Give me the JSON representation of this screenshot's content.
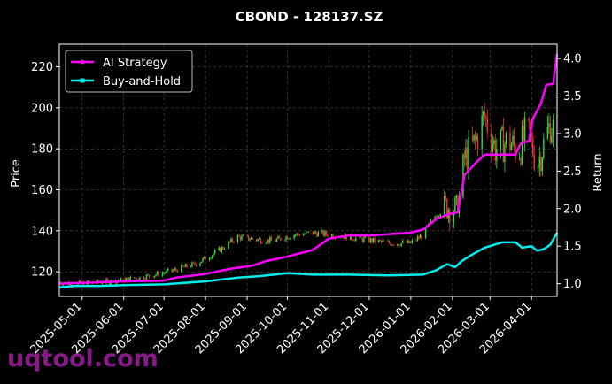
{
  "chart_data": {
    "type": "candlestick+line",
    "title": "CBOND - 128137.SZ",
    "ylabel_left": "Price",
    "ylabel_right": "Return",
    "ylim_left": [
      108,
      231
    ],
    "ylim_right": [
      0.83,
      4.19
    ],
    "yticks_left": [
      120,
      140,
      160,
      180,
      200,
      220
    ],
    "yticks_right": [
      1.0,
      1.5,
      2.0,
      2.5,
      3.0,
      3.5,
      4.0
    ],
    "ytick_labels_right": [
      "1.0",
      "1.5",
      "2.0",
      "2.5",
      "3.0",
      "3.5",
      "4.0"
    ],
    "xlim": [
      "2025-04-14",
      "2026-04-20"
    ],
    "xticks": [
      "2025-05-01",
      "2025-06-01",
      "2025-07-01",
      "2025-08-01",
      "2025-09-01",
      "2025-10-01",
      "2025-11-01",
      "2025-12-01",
      "2026-01-01",
      "2026-02-01",
      "2026-03-01",
      "2026-04-01"
    ],
    "grid": true,
    "legend_position": "upper-left",
    "colors": {
      "up": "#33dd33",
      "down": "#ee3333",
      "ai": "#ff00ff",
      "bh": "#00eeee",
      "grid": "#555555",
      "text": "#ffffff"
    },
    "price_keyframes": [
      [
        "2025-04-14",
        115
      ],
      [
        "2025-04-25",
        114
      ],
      [
        "2025-05-15",
        115
      ],
      [
        "2025-06-01",
        116
      ],
      [
        "2025-06-20",
        118
      ],
      [
        "2025-07-10",
        121
      ],
      [
        "2025-07-25",
        124
      ],
      [
        "2025-08-10",
        130
      ],
      [
        "2025-08-25",
        137
      ],
      [
        "2025-09-05",
        136
      ],
      [
        "2025-09-20",
        135
      ],
      [
        "2025-10-05",
        138
      ],
      [
        "2025-10-20",
        139
      ],
      [
        "2025-11-05",
        138
      ],
      [
        "2025-11-25",
        136
      ],
      [
        "2025-12-15",
        134
      ],
      [
        "2026-01-01",
        134
      ],
      [
        "2026-01-10",
        138
      ],
      [
        "2026-01-20",
        148
      ],
      [
        "2026-01-28",
        152
      ],
      [
        "2026-02-05",
        150
      ],
      [
        "2026-02-10",
        175
      ],
      [
        "2026-02-18",
        183
      ],
      [
        "2026-02-25",
        196
      ],
      [
        "2026-03-05",
        180
      ],
      [
        "2026-03-15",
        184
      ],
      [
        "2026-03-22",
        178
      ],
      [
        "2026-03-27",
        186
      ],
      [
        "2026-03-31",
        185
      ],
      [
        "2026-04-05",
        172
      ],
      [
        "2026-04-10",
        182
      ],
      [
        "2026-04-15",
        192
      ],
      [
        "2026-04-20",
        186
      ]
    ],
    "series": [
      {
        "name": "AI Strategy",
        "axis": "right",
        "points": [
          [
            "2025-04-14",
            1.0
          ],
          [
            "2025-05-01",
            1.01
          ],
          [
            "2025-06-01",
            1.03
          ],
          [
            "2025-07-01",
            1.04
          ],
          [
            "2025-07-10",
            1.08
          ],
          [
            "2025-08-01",
            1.13
          ],
          [
            "2025-08-20",
            1.2
          ],
          [
            "2025-09-05",
            1.24
          ],
          [
            "2025-09-15",
            1.3
          ],
          [
            "2025-10-01",
            1.36
          ],
          [
            "2025-10-20",
            1.45
          ],
          [
            "2025-11-01",
            1.6
          ],
          [
            "2025-11-15",
            1.64
          ],
          [
            "2025-12-01",
            1.64
          ],
          [
            "2026-01-01",
            1.68
          ],
          [
            "2026-01-10",
            1.72
          ],
          [
            "2026-01-20",
            1.86
          ],
          [
            "2026-01-28",
            1.92
          ],
          [
            "2026-02-05",
            1.95
          ],
          [
            "2026-02-10",
            2.45
          ],
          [
            "2026-02-18",
            2.6
          ],
          [
            "2026-02-25",
            2.72
          ],
          [
            "2026-03-15",
            2.72
          ],
          [
            "2026-03-20",
            2.72
          ],
          [
            "2026-03-24",
            2.87
          ],
          [
            "2026-03-30",
            2.9
          ],
          [
            "2026-04-02",
            3.2
          ],
          [
            "2026-04-08",
            3.4
          ],
          [
            "2026-04-12",
            3.65
          ],
          [
            "2026-04-17",
            3.66
          ],
          [
            "2026-04-20",
            4.06
          ]
        ]
      },
      {
        "name": "Buy-and-Hold",
        "axis": "right",
        "points": [
          [
            "2025-04-14",
            0.95
          ],
          [
            "2025-04-25",
            0.97
          ],
          [
            "2025-05-15",
            0.97
          ],
          [
            "2025-06-01",
            0.98
          ],
          [
            "2025-07-01",
            0.99
          ],
          [
            "2025-08-01",
            1.03
          ],
          [
            "2025-08-25",
            1.08
          ],
          [
            "2025-09-10",
            1.1
          ],
          [
            "2025-10-01",
            1.14
          ],
          [
            "2025-10-20",
            1.12
          ],
          [
            "2025-11-15",
            1.12
          ],
          [
            "2025-12-15",
            1.11
          ],
          [
            "2026-01-10",
            1.12
          ],
          [
            "2026-01-20",
            1.18
          ],
          [
            "2026-01-28",
            1.26
          ],
          [
            "2026-02-03",
            1.22
          ],
          [
            "2026-02-08",
            1.3
          ],
          [
            "2026-02-15",
            1.38
          ],
          [
            "2026-02-25",
            1.48
          ],
          [
            "2026-03-10",
            1.55
          ],
          [
            "2026-03-20",
            1.55
          ],
          [
            "2026-03-25",
            1.48
          ],
          [
            "2026-04-01",
            1.5
          ],
          [
            "2026-04-05",
            1.44
          ],
          [
            "2026-04-10",
            1.46
          ],
          [
            "2026-04-15",
            1.52
          ],
          [
            "2026-04-20",
            1.68
          ]
        ]
      }
    ]
  },
  "watermark": "uqtool.com"
}
